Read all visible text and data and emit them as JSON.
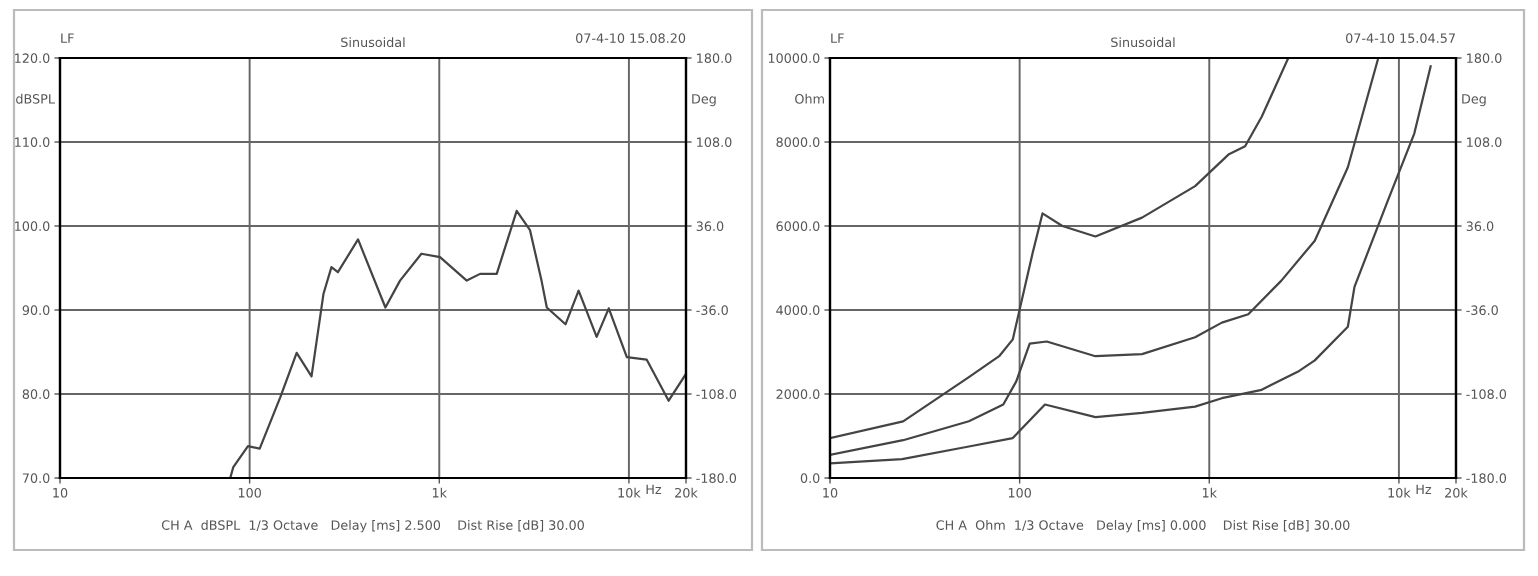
{
  "chart_data": [
    {
      "type": "line",
      "title": "Sinusoidal",
      "ylabel": "dBSPL",
      "y2label": "Deg",
      "xlabel": "Hz",
      "log": "x",
      "grid": true,
      "legend": false,
      "marker": "none",
      "line_style": "solid",
      "annotations": [
        "LF",
        "07-4-10 15.08.20",
        "CH A  dBSPL  1/3 Octave   Delay [ms] 2.500    Dist Rise [dB] 30.00"
      ],
      "xlim": [
        10,
        20000
      ],
      "xticks": [
        10,
        100,
        {
          "value": 1000,
          "label": "1k"
        },
        {
          "value": 10000,
          "label": "10k"
        },
        {
          "value": 20000,
          "label": "20k"
        }
      ],
      "ylim": [
        70,
        120
      ],
      "yticks": [
        {
          "value": 70,
          "label": "70.0"
        },
        {
          "value": 80,
          "label": "80.0"
        },
        {
          "value": 90,
          "label": "90.0"
        },
        {
          "value": 100,
          "label": "100.0"
        },
        {
          "value": 110,
          "label": "110.0"
        },
        {
          "value": 120,
          "label": "120.0"
        }
      ],
      "y2lim": [
        -180,
        180
      ],
      "y2ticks": [
        {
          "value": -180,
          "label": "-180.0"
        },
        {
          "value": -108,
          "label": "-108.0"
        },
        {
          "value": -36,
          "label": "-36.0"
        },
        {
          "value": 36,
          "label": "36.0"
        },
        {
          "value": 108,
          "label": "108.0"
        },
        {
          "value": 180,
          "label": "180.0"
        }
      ],
      "series": [
        {
          "color": "#444444",
          "x": [
            79,
            82,
            98,
            113,
            145,
            177,
            212,
            245,
            270,
            292,
            373,
            520,
            621,
            805,
            1009,
            1396,
            1641,
            2009,
            2560,
            3010,
            3460,
            3690,
            4630,
            5430,
            6760,
            7830,
            9750,
            12400,
            16200,
            20000
          ],
          "values": [
            70,
            71.3,
            73.8,
            73.5,
            79.6,
            84.9,
            82.1,
            91.9,
            95.1,
            94.5,
            98.4,
            90.3,
            93.5,
            96.7,
            96.3,
            93.5,
            94.3,
            94.3,
            101.8,
            99.5,
            93.5,
            90.3,
            88.3,
            92.3,
            86.8,
            90.2,
            84.4,
            84.1,
            79.2,
            82.4
          ]
        }
      ]
    },
    {
      "type": "line",
      "title": "Sinusoidal",
      "ylabel": "Ohm",
      "y2label": "Deg",
      "xlabel": "Hz",
      "log": "x",
      "grid": true,
      "legend": false,
      "marker": "none",
      "line_style": "solid",
      "annotations": [
        "LF",
        "07-4-10 15.04.57",
        "CH A  Ohm  1/3 Octave   Delay [ms] 0.000    Dist Rise [dB] 30.00"
      ],
      "xlim": [
        10,
        20000
      ],
      "xticks": [
        10,
        100,
        {
          "value": 1000,
          "label": "1k"
        },
        {
          "value": 10000,
          "label": "10k"
        },
        {
          "value": 20000,
          "label": "20k"
        }
      ],
      "ylim": [
        0,
        10000
      ],
      "yticks": [
        {
          "value": 0,
          "label": "0.0"
        },
        {
          "value": 2000,
          "label": "2000.0"
        },
        {
          "value": 4000,
          "label": "4000.0"
        },
        {
          "value": 6000,
          "label": "6000.0"
        },
        {
          "value": 8000,
          "label": "8000.0"
        },
        {
          "value": 10000,
          "label": "10000.0"
        }
      ],
      "y2lim": [
        -180,
        180
      ],
      "y2ticks": [
        {
          "value": -180,
          "label": "-180.0"
        },
        {
          "value": -108,
          "label": "-108.0"
        },
        {
          "value": -36,
          "label": "-36.0"
        },
        {
          "value": 36,
          "label": "36.0"
        },
        {
          "value": 108,
          "label": "108.0"
        },
        {
          "value": 180,
          "label": "180.0"
        }
      ],
      "series": [
        {
          "color": "#444444",
          "x": [
            10,
            24.3,
            54,
            78,
            92,
            117,
            132,
            168,
            251,
            442,
            842,
            1262,
            1545,
            1890,
            2610
          ],
          "values": [
            950,
            1350,
            2400,
            2900,
            3300,
            5350,
            6300,
            6000,
            5750,
            6200,
            6950,
            7700,
            7900,
            8600,
            10000
          ]
        },
        {
          "color": "#444444",
          "x": [
            10,
            24.3,
            54,
            82,
            96,
            113,
            139,
            251,
            442,
            842,
            1165,
            1606,
            2400,
            3600,
            5380,
            7730
          ],
          "values": [
            550,
            900,
            1350,
            1750,
            2300,
            3200,
            3250,
            2900,
            2950,
            3350,
            3700,
            3900,
            4700,
            5650,
            7400,
            9950
          ]
        },
        {
          "color": "#444444",
          "x": [
            10,
            24,
            54,
            92,
            136,
            251,
            442,
            842,
            1165,
            1890,
            2980,
            3600,
            5380,
            5830,
            8730,
            12050,
            14700
          ],
          "values": [
            350,
            450,
            750,
            950,
            1750,
            1450,
            1550,
            1700,
            1900,
            2100,
            2550,
            2800,
            3600,
            4550,
            6600,
            8200,
            9800
          ]
        }
      ]
    }
  ]
}
